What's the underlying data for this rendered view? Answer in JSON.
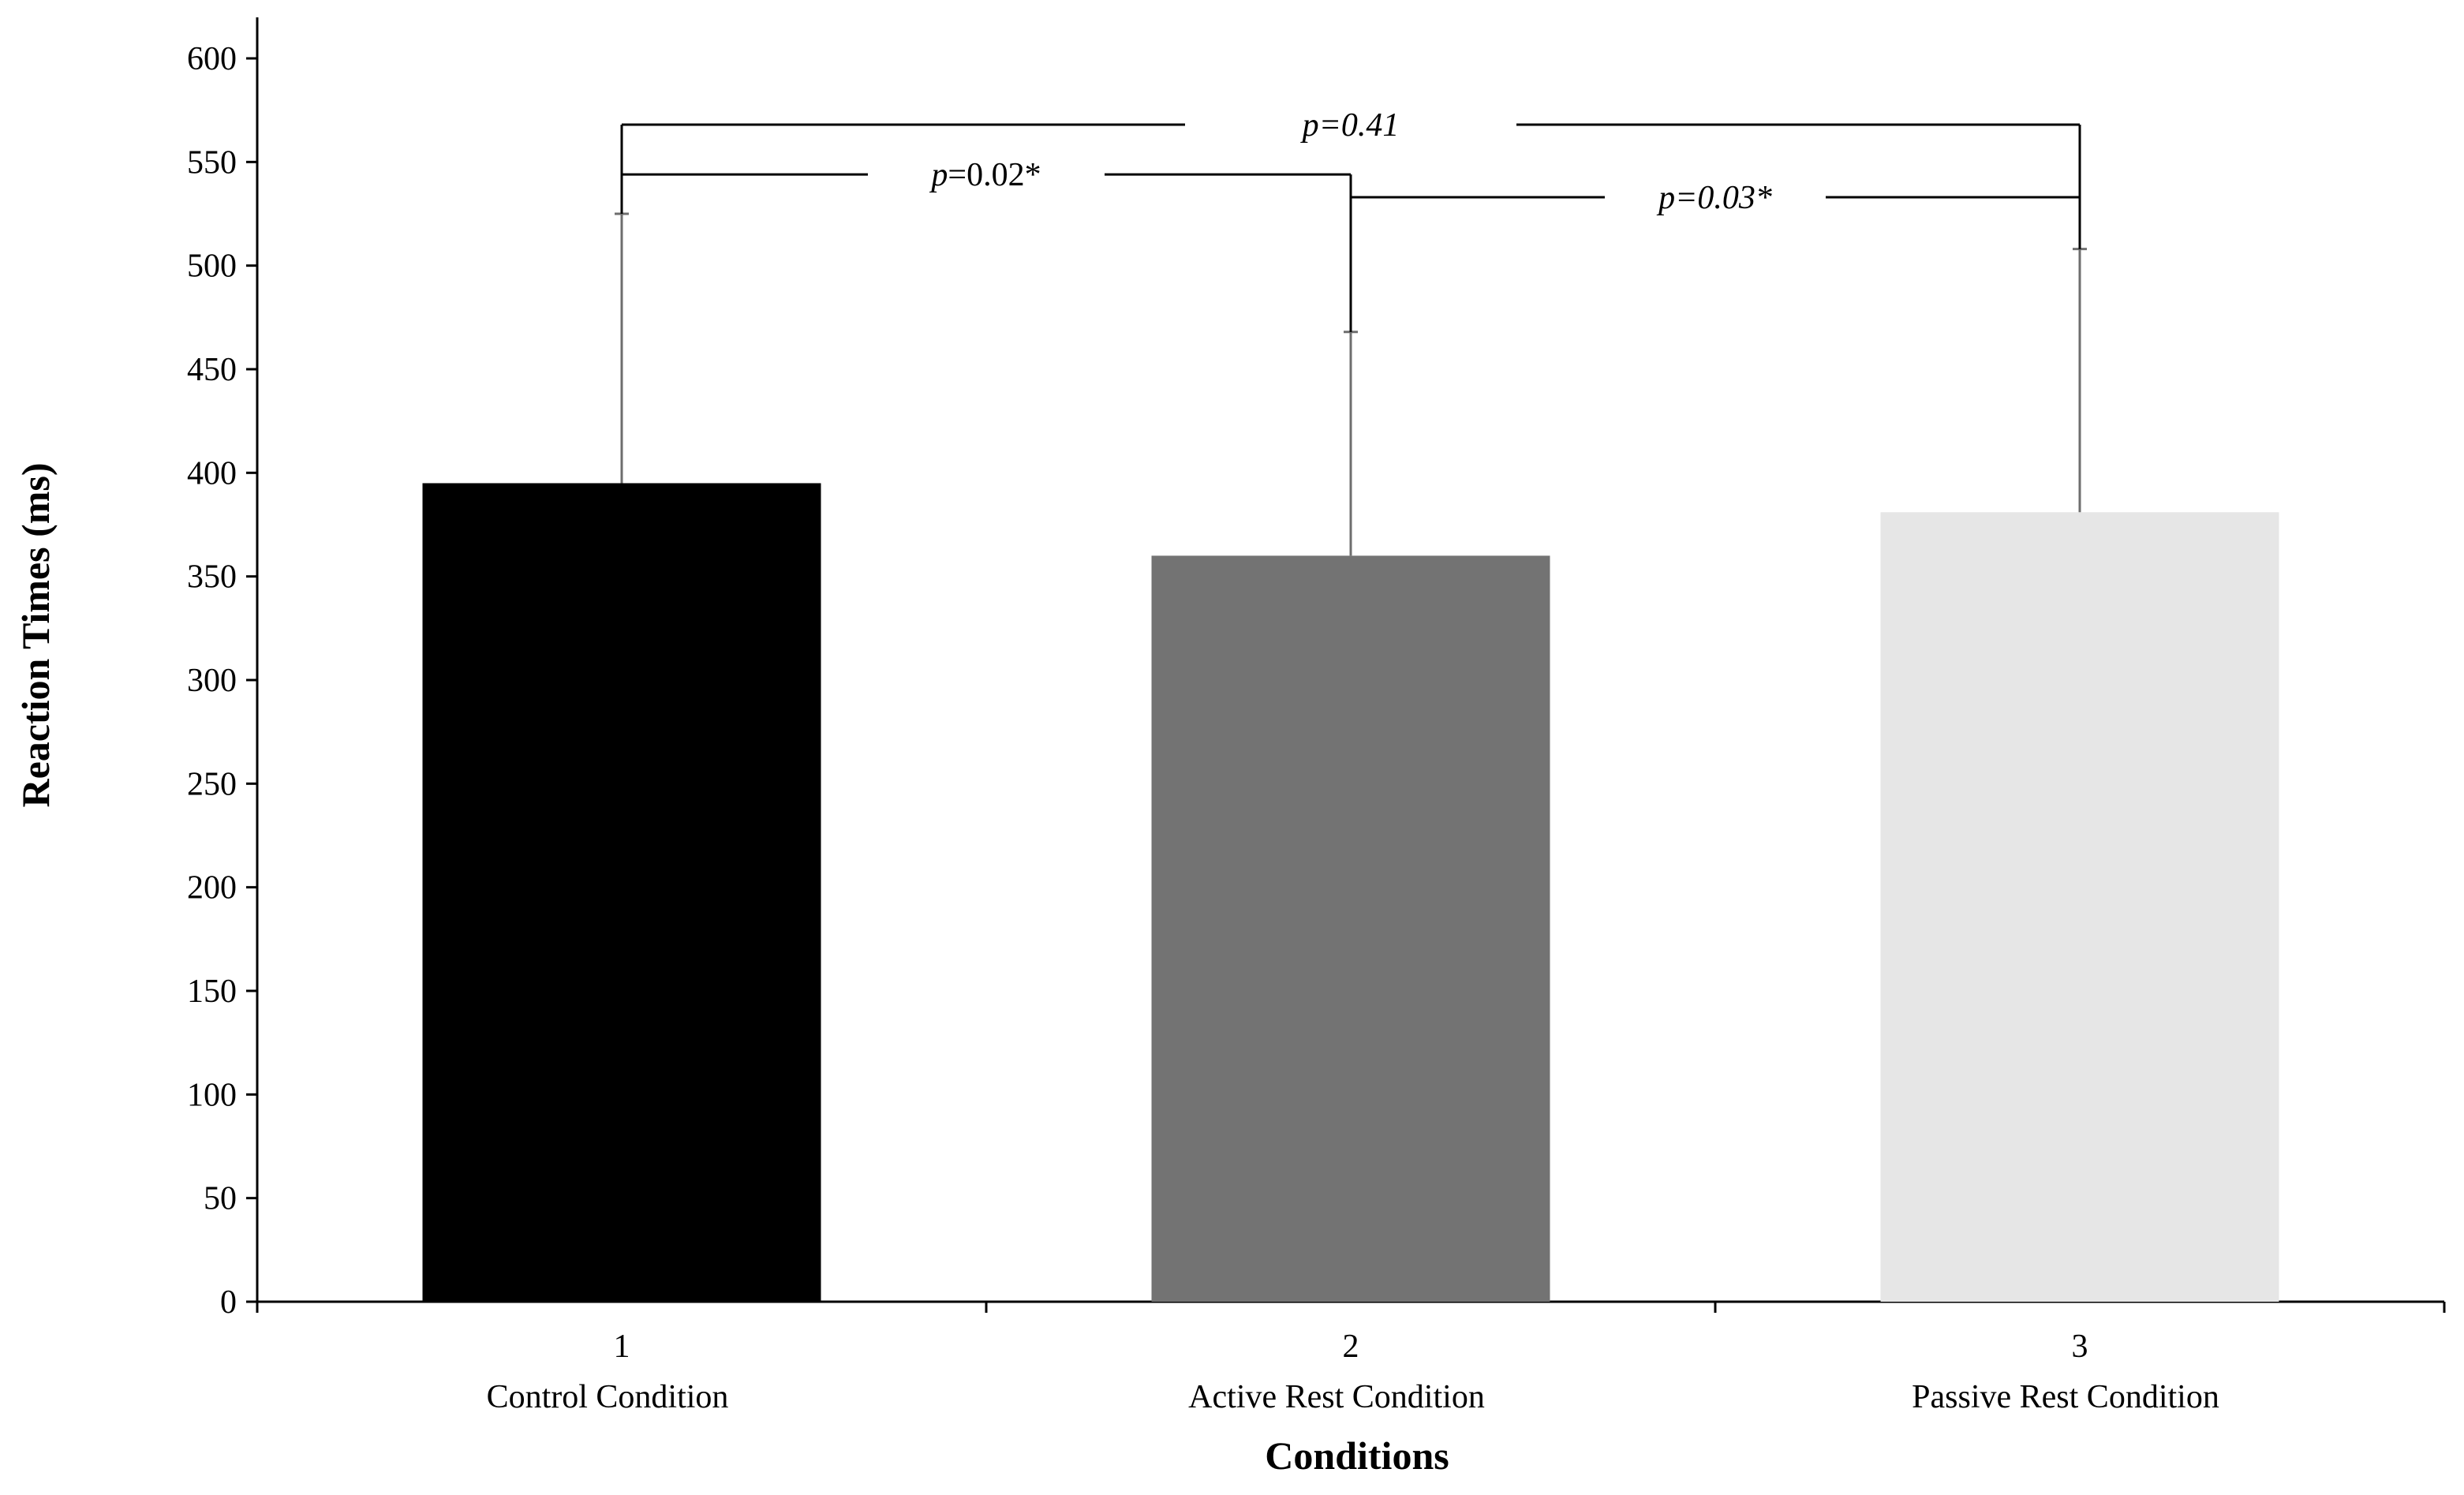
{
  "chart_data": {
    "type": "bar",
    "x_numbers": [
      "1",
      "2",
      "3"
    ],
    "categories": [
      "Control Condition",
      "Active Rest Condition",
      "Passive Rest Condition"
    ],
    "values": [
      395,
      360,
      381
    ],
    "error_upper": [
      525,
      468,
      508
    ],
    "bar_colors": [
      "#000000",
      "#737373",
      "#e6e6e6"
    ],
    "xlabel": "Conditions",
    "ylabel": "Reaction Times (ms)",
    "ylim": [
      0,
      600
    ],
    "yticks": [
      0,
      50,
      100,
      150,
      200,
      250,
      300,
      350,
      400,
      450,
      500,
      550,
      600
    ],
    "grid": false,
    "comparisons": [
      {
        "from": 0,
        "to": 2,
        "y": 568,
        "p_prefix": "p",
        "p_suffix": "=0.41",
        "italic_all": true
      },
      {
        "from": 0,
        "to": 1,
        "y": 544,
        "p_prefix": "p",
        "p_suffix": "=0.02*",
        "italic_all": false
      },
      {
        "from": 1,
        "to": 2,
        "y": 533,
        "p_prefix": "p",
        "p_suffix": "=0.03*",
        "italic_all": true
      }
    ]
  }
}
